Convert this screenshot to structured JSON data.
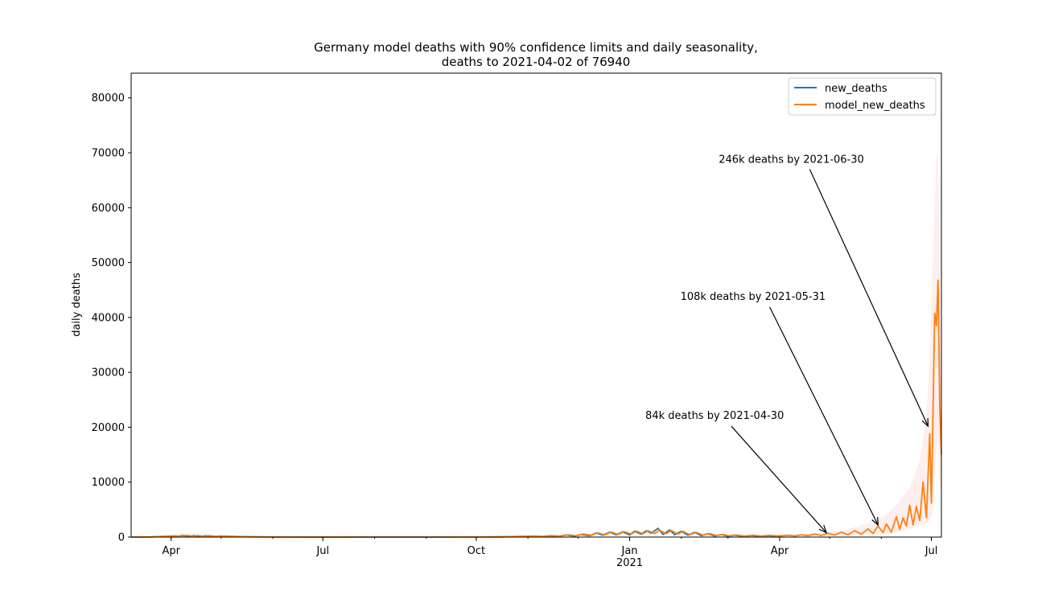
{
  "chart_data": {
    "type": "line",
    "title_line1": "Germany model deaths with 90% confidence limits and daily seasonality,",
    "title_line2": "deaths to 2021-04-02 of 76940",
    "xlabel": "",
    "ylabel": "daily deaths",
    "x_range": [
      "2020-03-08",
      "2021-07-07"
    ],
    "ylim": [
      0,
      84500
    ],
    "y_ticks": [
      0,
      10000,
      20000,
      30000,
      40000,
      50000,
      60000,
      70000,
      80000
    ],
    "x_ticks": [
      {
        "date": "2020-04-01",
        "label": "Apr",
        "sublabel": ""
      },
      {
        "date": "2020-07-01",
        "label": "Jul",
        "sublabel": ""
      },
      {
        "date": "2020-10-01",
        "label": "Oct",
        "sublabel": ""
      },
      {
        "date": "2021-01-01",
        "label": "Jan",
        "sublabel": "2021"
      },
      {
        "date": "2021-04-01",
        "label": "Apr",
        "sublabel": ""
      },
      {
        "date": "2021-07-01",
        "label": "Jul",
        "sublabel": ""
      }
    ],
    "grid": false,
    "legend_position": "top-right",
    "colors": {
      "new_deaths": "#1f77b4",
      "model_new_deaths": "#ff7f0e",
      "confidence_band": "#ffe0e0"
    },
    "series": [
      {
        "name": "new_deaths",
        "points": [
          [
            "2020-03-08",
            0
          ],
          [
            "2020-03-20",
            30
          ],
          [
            "2020-03-27",
            120
          ],
          [
            "2020-04-01",
            180
          ],
          [
            "2020-04-04",
            60
          ],
          [
            "2020-04-08",
            310
          ],
          [
            "2020-04-11",
            100
          ],
          [
            "2020-04-15",
            290
          ],
          [
            "2020-04-18",
            90
          ],
          [
            "2020-04-22",
            260
          ],
          [
            "2020-04-26",
            60
          ],
          [
            "2020-04-30",
            190
          ],
          [
            "2020-05-06",
            120
          ],
          [
            "2020-05-12",
            70
          ],
          [
            "2020-05-20",
            40
          ],
          [
            "2020-06-01",
            20
          ],
          [
            "2020-07-01",
            5
          ],
          [
            "2020-08-01",
            5
          ],
          [
            "2020-09-01",
            5
          ],
          [
            "2020-10-01",
            10
          ],
          [
            "2020-10-15",
            30
          ],
          [
            "2020-10-25",
            90
          ],
          [
            "2020-11-04",
            150
          ],
          [
            "2020-11-09",
            80
          ],
          [
            "2020-11-14",
            230
          ],
          [
            "2020-11-19",
            120
          ],
          [
            "2020-11-24",
            380
          ],
          [
            "2020-11-29",
            180
          ],
          [
            "2020-12-03",
            450
          ],
          [
            "2020-12-08",
            250
          ],
          [
            "2020-12-12",
            750
          ],
          [
            "2020-12-16",
            330
          ],
          [
            "2020-12-20",
            900
          ],
          [
            "2020-12-24",
            420
          ],
          [
            "2020-12-28",
            950
          ],
          [
            "2021-01-01",
            380
          ],
          [
            "2021-01-04",
            1050
          ],
          [
            "2021-01-08",
            520
          ],
          [
            "2021-01-11",
            1150
          ],
          [
            "2021-01-14",
            700
          ],
          [
            "2021-01-18",
            1600
          ],
          [
            "2021-01-21",
            480
          ],
          [
            "2021-01-25",
            1300
          ],
          [
            "2021-01-28",
            420
          ],
          [
            "2021-02-01",
            1050
          ],
          [
            "2021-02-05",
            330
          ],
          [
            "2021-02-09",
            850
          ],
          [
            "2021-02-13",
            260
          ],
          [
            "2021-02-17",
            620
          ],
          [
            "2021-02-21",
            200
          ],
          [
            "2021-02-25",
            450
          ],
          [
            "2021-03-01",
            160
          ],
          [
            "2021-03-05",
            330
          ],
          [
            "2021-03-10",
            150
          ],
          [
            "2021-03-15",
            280
          ],
          [
            "2021-03-20",
            150
          ],
          [
            "2021-03-25",
            260
          ],
          [
            "2021-03-29",
            140
          ],
          [
            "2021-04-02",
            250
          ]
        ]
      },
      {
        "name": "model_new_deaths",
        "points": [
          [
            "2020-03-08",
            0
          ],
          [
            "2020-03-20",
            40
          ],
          [
            "2020-03-28",
            150
          ],
          [
            "2020-04-03",
            230
          ],
          [
            "2020-04-07",
            160
          ],
          [
            "2020-04-10",
            320
          ],
          [
            "2020-04-14",
            180
          ],
          [
            "2020-04-17",
            300
          ],
          [
            "2020-04-21",
            150
          ],
          [
            "2020-04-24",
            260
          ],
          [
            "2020-04-28",
            120
          ],
          [
            "2020-05-03",
            210
          ],
          [
            "2020-05-10",
            120
          ],
          [
            "2020-05-20",
            60
          ],
          [
            "2020-06-01",
            20
          ],
          [
            "2020-07-01",
            8
          ],
          [
            "2020-08-01",
            5
          ],
          [
            "2020-09-01",
            5
          ],
          [
            "2020-10-01",
            15
          ],
          [
            "2020-10-15",
            45
          ],
          [
            "2020-10-25",
            110
          ],
          [
            "2020-11-05",
            200
          ],
          [
            "2020-11-10",
            120
          ],
          [
            "2020-11-15",
            280
          ],
          [
            "2020-11-20",
            170
          ],
          [
            "2020-11-25",
            420
          ],
          [
            "2020-11-30",
            230
          ],
          [
            "2020-12-04",
            560
          ],
          [
            "2020-12-09",
            320
          ],
          [
            "2020-12-13",
            780
          ],
          [
            "2020-12-17",
            400
          ],
          [
            "2020-12-21",
            920
          ],
          [
            "2020-12-25",
            480
          ],
          [
            "2020-12-29",
            980
          ],
          [
            "2021-01-02",
            520
          ],
          [
            "2021-01-05",
            1080
          ],
          [
            "2021-01-09",
            600
          ],
          [
            "2021-01-12",
            1150
          ],
          [
            "2021-01-16",
            650
          ],
          [
            "2021-01-19",
            1250
          ],
          [
            "2021-01-23",
            600
          ],
          [
            "2021-01-26",
            1200
          ],
          [
            "2021-01-30",
            520
          ],
          [
            "2021-02-02",
            1050
          ],
          [
            "2021-02-06",
            430
          ],
          [
            "2021-02-10",
            850
          ],
          [
            "2021-02-14",
            350
          ],
          [
            "2021-02-18",
            650
          ],
          [
            "2021-02-22",
            280
          ],
          [
            "2021-02-26",
            480
          ],
          [
            "2021-03-02",
            220
          ],
          [
            "2021-03-06",
            380
          ],
          [
            "2021-03-11",
            180
          ],
          [
            "2021-03-16",
            340
          ],
          [
            "2021-03-21",
            180
          ],
          [
            "2021-03-26",
            320
          ],
          [
            "2021-04-01",
            180
          ],
          [
            "2021-04-06",
            350
          ],
          [
            "2021-04-10",
            200
          ],
          [
            "2021-04-14",
            420
          ],
          [
            "2021-04-18",
            250
          ],
          [
            "2021-04-22",
            560
          ],
          [
            "2021-04-26",
            300
          ],
          [
            "2021-04-30",
            700
          ],
          [
            "2021-05-04",
            360
          ],
          [
            "2021-05-08",
            900
          ],
          [
            "2021-05-12",
            420
          ],
          [
            "2021-05-16",
            1150
          ],
          [
            "2021-05-20",
            520
          ],
          [
            "2021-05-24",
            1500
          ],
          [
            "2021-05-27",
            650
          ],
          [
            "2021-05-30",
            2000
          ],
          [
            "2021-06-02",
            800
          ],
          [
            "2021-06-04",
            2400
          ],
          [
            "2021-06-07",
            900
          ],
          [
            "2021-06-10",
            3700
          ],
          [
            "2021-06-12",
            1400
          ],
          [
            "2021-06-14",
            3500
          ],
          [
            "2021-06-16",
            2000
          ],
          [
            "2021-06-18",
            5800
          ],
          [
            "2021-06-20",
            2200
          ],
          [
            "2021-06-22",
            5600
          ],
          [
            "2021-06-24",
            3000
          ],
          [
            "2021-06-26",
            10000
          ],
          [
            "2021-06-28",
            3500
          ],
          [
            "2021-06-30",
            18800
          ],
          [
            "2021-07-01",
            6200
          ],
          [
            "2021-07-03",
            40800
          ],
          [
            "2021-07-04",
            38500
          ],
          [
            "2021-07-05",
            46800
          ],
          [
            "2021-07-06",
            24000
          ],
          [
            "2021-07-07",
            15000
          ]
        ]
      }
    ],
    "confidence_band": {
      "points": [
        [
          "2021-04-02",
          150,
          400
        ],
        [
          "2021-04-20",
          200,
          700
        ],
        [
          "2021-05-10",
          300,
          1300
        ],
        [
          "2021-05-25",
          500,
          2600
        ],
        [
          "2021-06-05",
          600,
          4200
        ],
        [
          "2021-06-12",
          1000,
          6500
        ],
        [
          "2021-06-18",
          1500,
          9000
        ],
        [
          "2021-06-24",
          2000,
          14000
        ],
        [
          "2021-06-28",
          2500,
          22000
        ],
        [
          "2021-06-30",
          3000,
          33000
        ],
        [
          "2021-07-02",
          5000,
          50000
        ],
        [
          "2021-07-04",
          15000,
          70000
        ],
        [
          "2021-07-05",
          18000,
          69000
        ],
        [
          "2021-07-06",
          10000,
          45000
        ],
        [
          "2021-07-07",
          8000,
          30000
        ]
      ]
    },
    "annotations": [
      {
        "text": "84k deaths by 2021-04-30",
        "text_at": [
          "2021-02-21",
          21500
        ],
        "arrow_tail": [
          "2021-03-03",
          20200
        ],
        "arrow_head": [
          "2021-04-29",
          800
        ]
      },
      {
        "text": "108k deaths by 2021-05-31",
        "text_at": [
          "2021-03-16",
          43200
        ],
        "arrow_tail": [
          "2021-03-26",
          41900
        ],
        "arrow_head": [
          "2021-05-30",
          2200
        ]
      },
      {
        "text": "246k deaths by 2021-06-30",
        "text_at": [
          "2021-04-08",
          68200
        ],
        "arrow_tail": [
          "2021-04-19",
          67000
        ],
        "arrow_head": [
          "2021-06-29",
          20200
        ]
      }
    ]
  }
}
